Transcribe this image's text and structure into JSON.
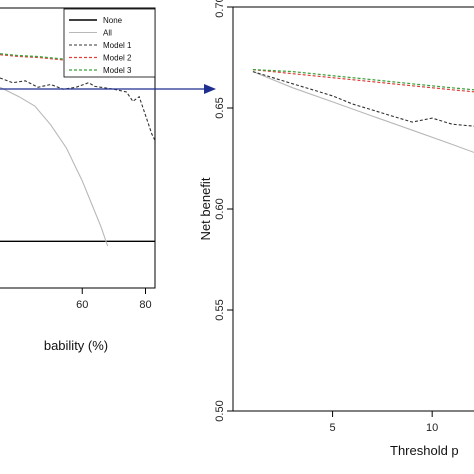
{
  "colors": {
    "none": "#000000",
    "all": "#b8b8b8",
    "model1": "#333333",
    "model2": "#e0403a",
    "model3": "#3aa03a",
    "arrow": "#1f2f8f"
  },
  "chart_data": [
    {
      "type": "line",
      "panel": "left",
      "title": "",
      "xlabel": "bability (%)",
      "ylabel": "",
      "xlim": [
        34,
        83
      ],
      "ylim": [
        -0.05,
        0.25
      ],
      "x_ticks": [
        60,
        80
      ],
      "x_tick_labels": [
        "60",
        "80"
      ],
      "legend": {
        "placement": "top-right",
        "entries": [
          "None",
          "All",
          "Model 1",
          "Model 2",
          "Model 3"
        ]
      },
      "series": [
        {
          "name": "None",
          "style": "solid",
          "x": [
            34,
            83
          ],
          "y": [
            0,
            0
          ]
        },
        {
          "name": "All",
          "style": "solid",
          "x": [
            34,
            40,
            45,
            50,
            55,
            60,
            63,
            66,
            68
          ],
          "y": [
            0.165,
            0.155,
            0.145,
            0.125,
            0.1,
            0.065,
            0.04,
            0.015,
            -0.005
          ]
        },
        {
          "name": "Model 1",
          "style": "dashed",
          "x": [
            34,
            38,
            42,
            46,
            50,
            54,
            58,
            62,
            64,
            66,
            70,
            74,
            76,
            78,
            80,
            81,
            82,
            83
          ],
          "y": [
            0.175,
            0.17,
            0.172,
            0.165,
            0.168,
            0.163,
            0.165,
            0.17,
            0.166,
            0.165,
            0.163,
            0.16,
            0.15,
            0.155,
            0.135,
            0.125,
            0.115,
            0.108
          ]
        },
        {
          "name": "Model 2",
          "style": "dashed",
          "x": [
            34,
            40,
            46,
            52,
            58,
            62,
            66,
            70,
            74,
            78,
            82,
            83
          ],
          "y": [
            0.2,
            0.198,
            0.197,
            0.195,
            0.193,
            0.192,
            0.19,
            0.189,
            0.186,
            0.185,
            0.182,
            0.18
          ]
        },
        {
          "name": "Model 3",
          "style": "dashed",
          "x": [
            34,
            40,
            46,
            52,
            58,
            62,
            66,
            70,
            72,
            74,
            78,
            82,
            83
          ],
          "y": [
            0.201,
            0.199,
            0.198,
            0.196,
            0.194,
            0.193,
            0.192,
            0.19,
            0.193,
            0.188,
            0.186,
            0.183,
            0.181
          ]
        }
      ]
    },
    {
      "type": "line",
      "panel": "right",
      "title": "",
      "xlabel": "Threshold p",
      "ylabel": "Net benefit",
      "xlim": [
        0,
        12.1
      ],
      "ylim": [
        0.5,
        0.7
      ],
      "grid": false,
      "x_ticks": [
        5,
        10
      ],
      "x_tick_labels": [
        "5",
        "10"
      ],
      "y_ticks": [
        0.5,
        0.55,
        0.6,
        0.65,
        0.7
      ],
      "y_tick_labels": [
        "0.50",
        "0.55",
        "0.60",
        "0.65",
        "0.70"
      ],
      "series": [
        {
          "name": "All",
          "style": "solid",
          "x": [
            1,
            3,
            5,
            7,
            9,
            11,
            12.1
          ],
          "y": [
            0.668,
            0.66,
            0.653,
            0.646,
            0.639,
            0.632,
            0.628
          ]
        },
        {
          "name": "Model 1",
          "style": "dashed",
          "x": [
            1,
            2,
            3,
            4,
            5,
            6,
            7,
            8,
            9,
            10,
            11,
            12.1
          ],
          "y": [
            0.668,
            0.665,
            0.662,
            0.659,
            0.656,
            0.652,
            0.649,
            0.646,
            0.643,
            0.645,
            0.642,
            0.641
          ]
        },
        {
          "name": "Model 2",
          "style": "dashed",
          "x": [
            1,
            3,
            5,
            7,
            9,
            11,
            12.1
          ],
          "y": [
            0.669,
            0.667,
            0.665,
            0.663,
            0.661,
            0.659,
            0.658
          ]
        },
        {
          "name": "Model 3",
          "style": "dashed",
          "x": [
            1,
            3,
            5,
            7,
            9,
            11,
            12.1
          ],
          "y": [
            0.669,
            0.668,
            0.666,
            0.664,
            0.662,
            0.66,
            0.659
          ]
        }
      ]
    }
  ]
}
